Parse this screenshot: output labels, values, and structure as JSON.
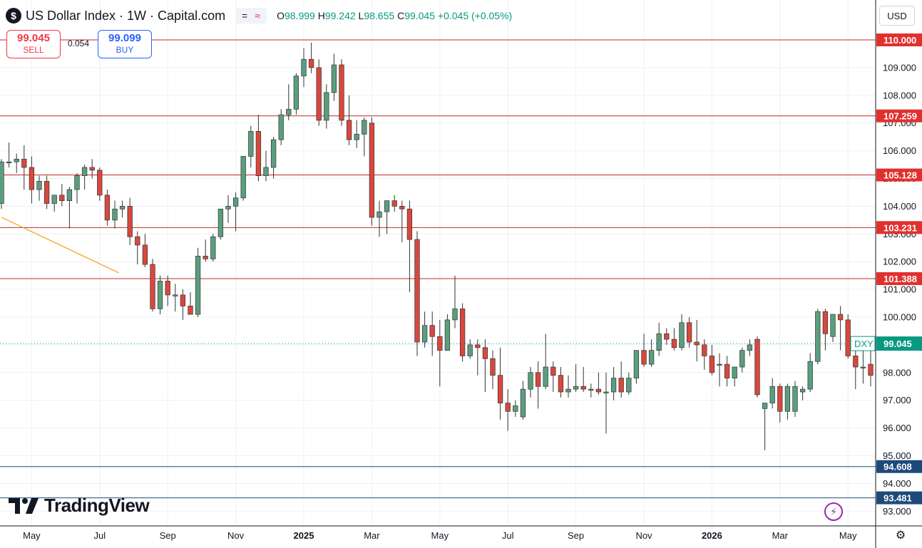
{
  "header": {
    "symbol_letter": "$",
    "title": "US Dollar Index · 1W · Capital.com",
    "toggle_a": "=",
    "toggle_b": "≈",
    "o_label": "O",
    "o_value": "98.999",
    "h_label": "H",
    "h_value": "99.242",
    "l_label": "L",
    "l_value": "98.655",
    "c_label": "C",
    "c_value": "99.045",
    "change": "+0.045 (+0.05%)"
  },
  "trade": {
    "sell_price": "99.045",
    "sell_label": "SELL",
    "spread": "0.054",
    "buy_price": "99.099",
    "buy_label": "BUY"
  },
  "currency": "USD",
  "brand": "TradingView",
  "colors": {
    "up": "#5b9e7e",
    "down": "#d9473d",
    "hline_red": "#c62828",
    "hline_blue": "#1e4a7a",
    "trend": "#f5a623",
    "price_line": "#089981"
  },
  "chart_data": {
    "type": "candlestick",
    "symbol": "DXY",
    "last_price": "99.045",
    "ylim": [
      92.6,
      111.2
    ],
    "y_ticks": [
      "93.000",
      "94.000",
      "95.000",
      "96.000",
      "97.000",
      "98.000",
      "99.000",
      "100.000",
      "101.000",
      "102.000",
      "103.000",
      "104.000",
      "105.000",
      "106.000",
      "107.000",
      "108.000",
      "109.000",
      "110.000"
    ],
    "x_labels": [
      {
        "label": "May",
        "week": 4
      },
      {
        "label": "Jul",
        "week": 13
      },
      {
        "label": "Sep",
        "week": 22
      },
      {
        "label": "Nov",
        "week": 31
      },
      {
        "label": "2025",
        "week": 40
      },
      {
        "label": "Mar",
        "week": 49
      },
      {
        "label": "May",
        "week": 58
      },
      {
        "label": "Jul",
        "week": 67
      },
      {
        "label": "Sep",
        "week": 76
      },
      {
        "label": "Nov",
        "week": 85
      },
      {
        "label": "2026",
        "week": 94
      },
      {
        "label": "Mar",
        "week": 103
      },
      {
        "label": "May",
        "week": 112
      }
    ],
    "levels": [
      {
        "value": 110.0,
        "label": "110.000",
        "color": "red"
      },
      {
        "value": 107.259,
        "label": "107.259",
        "color": "red"
      },
      {
        "value": 105.128,
        "label": "105.128",
        "color": "red"
      },
      {
        "value": 103.231,
        "label": "103.231",
        "color": "red"
      },
      {
        "value": 101.388,
        "label": "101.388",
        "color": "red"
      },
      {
        "value": 94.608,
        "label": "94.608",
        "color": "blue"
      },
      {
        "value": 93.481,
        "label": "93.481",
        "color": "blue"
      }
    ],
    "trendline": [
      {
        "week": 0,
        "price": 103.6
      },
      {
        "week": 15.5,
        "price": 101.6
      }
    ],
    "candles": [
      [
        104.1,
        105.7,
        103.9,
        105.6
      ],
      [
        105.6,
        106.3,
        105.4,
        105.6
      ],
      [
        105.6,
        105.9,
        105.2,
        105.7
      ],
      [
        105.7,
        106.2,
        104.6,
        105.4
      ],
      [
        105.4,
        105.8,
        104.1,
        104.6
      ],
      [
        104.6,
        105.1,
        104.2,
        104.9
      ],
      [
        104.9,
        105.1,
        103.9,
        104.1
      ],
      [
        104.1,
        104.4,
        103.8,
        104.4
      ],
      [
        104.4,
        104.8,
        104.0,
        104.2
      ],
      [
        104.2,
        104.7,
        103.2,
        104.6
      ],
      [
        104.6,
        105.2,
        104.1,
        105.1
      ],
      [
        105.1,
        105.5,
        104.6,
        105.4
      ],
      [
        105.4,
        105.7,
        105.0,
        105.3
      ],
      [
        105.3,
        105.4,
        104.2,
        104.4
      ],
      [
        104.4,
        104.6,
        103.3,
        103.5
      ],
      [
        103.5,
        104.2,
        103.2,
        103.9
      ],
      [
        103.9,
        104.2,
        103.6,
        104.0
      ],
      [
        104.0,
        104.3,
        102.6,
        102.9
      ],
      [
        102.9,
        103.1,
        101.9,
        102.6
      ],
      [
        102.6,
        103.0,
        101.8,
        101.9
      ],
      [
        101.9,
        102.1,
        100.2,
        100.3
      ],
      [
        100.3,
        101.5,
        100.1,
        101.3
      ],
      [
        101.3,
        101.5,
        100.4,
        100.8
      ],
      [
        100.8,
        101.2,
        100.2,
        100.8
      ],
      [
        100.8,
        101.0,
        99.9,
        100.4
      ],
      [
        100.4,
        100.9,
        100.1,
        100.1
      ],
      [
        100.1,
        102.5,
        100.0,
        102.2
      ],
      [
        102.2,
        102.8,
        102.0,
        102.1
      ],
      [
        102.1,
        103.0,
        102.0,
        102.9
      ],
      [
        102.9,
        103.8,
        102.8,
        103.9
      ],
      [
        103.9,
        104.4,
        103.4,
        104.0
      ],
      [
        104.0,
        104.5,
        103.1,
        104.3
      ],
      [
        104.3,
        105.8,
        104.2,
        105.8
      ],
      [
        105.8,
        106.9,
        105.4,
        106.7
      ],
      [
        106.7,
        107.3,
        104.9,
        105.1
      ],
      [
        105.1,
        106.0,
        104.9,
        105.4
      ],
      [
        105.4,
        106.5,
        105.0,
        106.4
      ],
      [
        106.4,
        107.5,
        106.2,
        107.3
      ],
      [
        107.3,
        108.4,
        107.1,
        107.5
      ],
      [
        107.5,
        108.8,
        107.3,
        108.7
      ],
      [
        108.7,
        109.7,
        108.3,
        109.3
      ],
      [
        109.3,
        109.9,
        108.8,
        109.0
      ],
      [
        109.0,
        109.3,
        106.9,
        107.1
      ],
      [
        107.1,
        108.4,
        106.8,
        108.1
      ],
      [
        108.1,
        109.5,
        107.8,
        109.1
      ],
      [
        109.1,
        109.3,
        106.9,
        107.1
      ],
      [
        107.1,
        108.0,
        106.2,
        106.4
      ],
      [
        106.4,
        107.1,
        106.1,
        106.6
      ],
      [
        106.6,
        107.2,
        105.8,
        107.1
      ],
      [
        107.0,
        107.2,
        103.3,
        103.6
      ],
      [
        103.6,
        104.2,
        102.9,
        103.8
      ],
      [
        103.8,
        104.2,
        103.0,
        104.2
      ],
      [
        104.2,
        104.4,
        103.8,
        104.0
      ],
      [
        104.0,
        104.2,
        102.7,
        103.9
      ],
      [
        103.9,
        104.2,
        100.9,
        102.8
      ],
      [
        102.8,
        103.1,
        98.6,
        99.1
      ],
      [
        99.1,
        100.2,
        98.9,
        99.7
      ],
      [
        99.7,
        100.2,
        98.6,
        99.3
      ],
      [
        99.3,
        99.9,
        97.5,
        98.8
      ],
      [
        98.8,
        100.1,
        98.8,
        99.9
      ],
      [
        99.9,
        101.5,
        99.6,
        100.3
      ],
      [
        100.3,
        100.5,
        98.4,
        98.6
      ],
      [
        98.6,
        99.2,
        98.5,
        99.0
      ],
      [
        99.0,
        99.2,
        97.9,
        98.9
      ],
      [
        98.9,
        99.2,
        97.3,
        98.5
      ],
      [
        98.5,
        98.8,
        97.4,
        97.9
      ],
      [
        97.9,
        98.9,
        96.3,
        96.9
      ],
      [
        96.9,
        97.4,
        95.9,
        96.6
      ],
      [
        96.6,
        97.0,
        96.4,
        96.8
      ],
      [
        96.4,
        97.7,
        96.3,
        97.4
      ],
      [
        97.4,
        98.2,
        97.1,
        98.0
      ],
      [
        98.0,
        98.4,
        96.7,
        97.5
      ],
      [
        97.5,
        99.4,
        97.4,
        98.2
      ],
      [
        98.2,
        98.4,
        97.3,
        97.9
      ],
      [
        97.9,
        98.2,
        97.1,
        97.3
      ],
      [
        97.3,
        97.9,
        97.1,
        97.4
      ],
      [
        97.4,
        98.3,
        97.3,
        97.5
      ],
      [
        97.5,
        98.2,
        97.3,
        97.4
      ],
      [
        97.4,
        97.6,
        97.1,
        97.4
      ],
      [
        97.4,
        98.0,
        97.2,
        97.3
      ],
      [
        97.3,
        98.0,
        95.8,
        97.3
      ],
      [
        97.3,
        98.2,
        97.0,
        97.8
      ],
      [
        97.8,
        98.4,
        97.1,
        97.3
      ],
      [
        97.3,
        98.0,
        97.2,
        97.8
      ],
      [
        97.8,
        98.8,
        97.6,
        98.8
      ],
      [
        98.8,
        99.4,
        98.2,
        98.3
      ],
      [
        98.3,
        99.2,
        98.2,
        98.8
      ],
      [
        98.8,
        99.8,
        98.6,
        99.4
      ],
      [
        99.4,
        99.6,
        99.0,
        99.2
      ],
      [
        99.2,
        99.6,
        98.8,
        98.9
      ],
      [
        98.9,
        100.1,
        98.8,
        99.8
      ],
      [
        99.8,
        100.0,
        98.9,
        99.1
      ],
      [
        99.1,
        99.9,
        98.4,
        99.0
      ],
      [
        99.0,
        99.2,
        98.1,
        98.6
      ],
      [
        98.6,
        99.0,
        97.9,
        98.0
      ],
      [
        98.3,
        98.7,
        97.5,
        98.3
      ],
      [
        98.3,
        98.6,
        97.5,
        97.8
      ],
      [
        97.8,
        98.2,
        97.5,
        98.2
      ],
      [
        98.2,
        98.9,
        98.0,
        98.8
      ],
      [
        98.8,
        99.2,
        98.6,
        99.0
      ],
      [
        99.2,
        99.3,
        97.1,
        97.2
      ],
      [
        96.7,
        96.9,
        95.2,
        96.9
      ],
      [
        96.9,
        97.8,
        96.7,
        97.5
      ],
      [
        97.5,
        97.6,
        96.2,
        96.6
      ],
      [
        96.6,
        97.6,
        96.3,
        97.5
      ],
      [
        96.6,
        97.7,
        96.4,
        97.5
      ],
      [
        97.3,
        97.5,
        97.0,
        97.4
      ],
      [
        97.4,
        98.7,
        97.3,
        98.4
      ],
      [
        98.4,
        100.3,
        98.3,
        100.2
      ],
      [
        100.2,
        100.3,
        98.8,
        99.4
      ],
      [
        99.3,
        100.1,
        99.1,
        100.1
      ],
      [
        100.1,
        100.4,
        98.8,
        99.9
      ],
      [
        99.9,
        100.1,
        98.5,
        98.6
      ],
      [
        98.6,
        99.0,
        97.4,
        98.2
      ],
      [
        98.2,
        98.8,
        97.6,
        98.2
      ],
      [
        98.3,
        98.8,
        97.5,
        97.9
      ],
      [
        97.6,
        97.9,
        97.4,
        97.7
      ],
      [
        97.7,
        99.0,
        97.5,
        99.0
      ],
      [
        98.999,
        99.242,
        98.655,
        99.045
      ]
    ]
  }
}
